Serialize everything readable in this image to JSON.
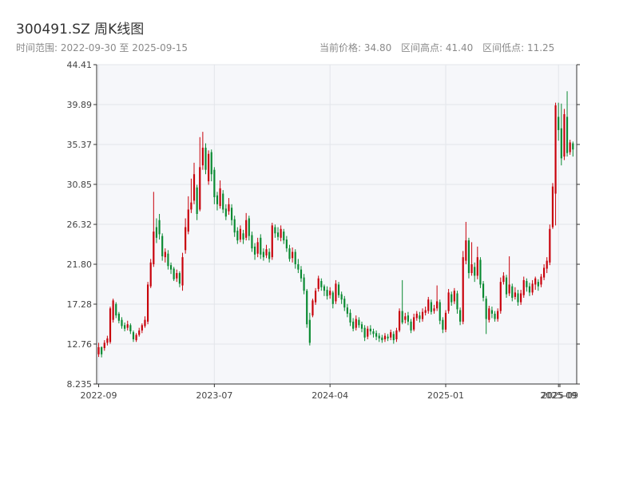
{
  "header": {
    "title": "300491.SZ 周K线图",
    "range_label": "时间范围: 2022-09-30 至 2025-09-15",
    "stats": {
      "price": "当前价格: 34.80",
      "high": "区间高点: 41.40",
      "low": "区间低点: 11.25"
    }
  },
  "colors": {
    "up": "#c8000a",
    "down": "#0a8a32",
    "plot_bg": "#f6f7fa",
    "grid": "#e3e5ea",
    "axis": "#333333"
  },
  "chart_data": {
    "type": "candlestick",
    "title": "300491.SZ 周K线图",
    "ylim": [
      8.235,
      44.41
    ],
    "y_ticks": [
      8.235,
      12.76,
      17.28,
      21.8,
      26.32,
      30.85,
      35.37,
      39.89,
      44.41
    ],
    "y_tick_labels": [
      "8.235",
      "12.76",
      "17.28",
      "21.80",
      "26.32",
      "30.85",
      "35.37",
      "39.89",
      "44.41"
    ],
    "x_tick_labels": [
      "2022-09",
      "2023-07",
      "2024-04",
      "2025-01",
      "2025-09"
    ],
    "x_tick_positions": [
      0,
      40,
      80,
      120,
      159
    ],
    "x_end_label": "2025-09",
    "x_end_position": 159.5,
    "candles": [
      [
        11.6,
        12.4,
        12.9,
        11.3
      ],
      [
        12.4,
        11.6,
        12.5,
        11.25
      ],
      [
        12.3,
        12.9,
        13.2,
        12.0
      ],
      [
        12.9,
        13.4,
        13.7,
        12.6
      ],
      [
        13.0,
        16.8,
        17.0,
        12.8
      ],
      [
        15.5,
        17.7,
        17.9,
        15.2
      ],
      [
        17.3,
        16.0,
        17.5,
        15.7
      ],
      [
        16.2,
        15.4,
        16.4,
        15.1
      ],
      [
        15.5,
        14.8,
        15.8,
        14.5
      ],
      [
        14.9,
        14.5,
        15.2,
        14.2
      ],
      [
        14.6,
        15.0,
        15.4,
        14.3
      ],
      [
        14.9,
        14.2,
        15.1,
        13.9
      ],
      [
        14.1,
        13.3,
        14.3,
        13.0
      ],
      [
        13.2,
        13.8,
        14.0,
        13.0
      ],
      [
        13.8,
        14.3,
        14.6,
        13.6
      ],
      [
        14.3,
        14.9,
        15.1,
        14.0
      ],
      [
        14.8,
        15.5,
        15.9,
        14.6
      ],
      [
        15.3,
        19.5,
        19.8,
        15.0
      ],
      [
        19.3,
        22.0,
        22.4,
        19.1
      ],
      [
        21.8,
        25.5,
        30.0,
        21.5
      ],
      [
        26.0,
        24.8,
        27.0,
        24.2
      ],
      [
        26.8,
        25.2,
        27.5,
        24.6
      ],
      [
        25.0,
        22.7,
        25.3,
        22.2
      ],
      [
        22.6,
        23.2,
        23.6,
        22.0
      ],
      [
        23.0,
        21.6,
        23.4,
        21.2
      ],
      [
        21.7,
        21.2,
        22.0,
        20.7
      ],
      [
        21.3,
        20.1,
        21.5,
        19.9
      ],
      [
        20.2,
        20.8,
        21.2,
        19.8
      ],
      [
        20.8,
        19.6,
        21.0,
        19.2
      ],
      [
        19.4,
        22.6,
        23.1,
        18.8
      ],
      [
        23.4,
        26.0,
        27.0,
        23.0
      ],
      [
        25.5,
        28.0,
        29.5,
        25.2
      ],
      [
        28.0,
        28.8,
        31.5,
        27.6
      ],
      [
        29.0,
        32.0,
        33.3,
        28.6
      ],
      [
        30.5,
        27.5,
        30.8,
        26.8
      ],
      [
        28.0,
        32.8,
        36.2,
        27.8
      ],
      [
        33.0,
        35.0,
        36.8,
        32.5
      ],
      [
        35.0,
        32.5,
        35.5,
        32.0
      ],
      [
        31.2,
        34.3,
        34.7,
        30.8
      ],
      [
        34.5,
        32.0,
        34.8,
        31.2
      ],
      [
        32.5,
        29.4,
        32.8,
        28.6
      ],
      [
        29.6,
        28.6,
        30.0,
        27.9
      ],
      [
        28.4,
        30.4,
        31.3,
        28.1
      ],
      [
        29.8,
        28.0,
        30.2,
        27.6
      ],
      [
        28.1,
        27.2,
        28.6,
        26.8
      ],
      [
        27.8,
        28.6,
        29.3,
        27.4
      ],
      [
        28.2,
        26.8,
        28.6,
        26.2
      ],
      [
        26.9,
        25.4,
        27.3,
        24.9
      ],
      [
        25.6,
        24.5,
        26.0,
        24.1
      ],
      [
        24.6,
        25.8,
        26.2,
        24.3
      ],
      [
        25.3,
        24.6,
        25.7,
        24.1
      ],
      [
        24.8,
        26.8,
        27.6,
        24.5
      ],
      [
        27.0,
        25.0,
        27.3,
        24.5
      ],
      [
        25.1,
        23.6,
        25.5,
        23.2
      ],
      [
        23.8,
        22.9,
        24.2,
        22.3
      ],
      [
        23.0,
        24.3,
        24.8,
        22.6
      ],
      [
        24.8,
        22.9,
        25.2,
        22.4
      ],
      [
        23.2,
        22.6,
        23.6,
        22.2
      ],
      [
        22.8,
        23.5,
        24.0,
        22.5
      ],
      [
        23.2,
        22.4,
        23.6,
        22.0
      ],
      [
        22.6,
        26.2,
        26.5,
        22.3
      ],
      [
        26.0,
        25.3,
        26.3,
        24.8
      ],
      [
        25.4,
        24.9,
        26.0,
        24.5
      ],
      [
        24.8,
        25.8,
        26.2,
        24.4
      ],
      [
        25.5,
        24.5,
        25.8,
        24.1
      ],
      [
        24.6,
        23.6,
        25.0,
        23.2
      ],
      [
        23.6,
        22.4,
        24.0,
        22.1
      ],
      [
        22.5,
        23.2,
        23.7,
        22.0
      ],
      [
        23.2,
        21.8,
        23.5,
        21.3
      ],
      [
        21.8,
        21.2,
        22.4,
        20.8
      ],
      [
        21.2,
        20.2,
        21.6,
        19.8
      ],
      [
        20.3,
        18.8,
        20.7,
        18.4
      ],
      [
        18.8,
        15.0,
        19.0,
        14.6
      ],
      [
        15.5,
        12.9,
        16.3,
        12.6
      ],
      [
        16.0,
        17.7,
        17.9,
        15.8
      ],
      [
        17.5,
        18.8,
        19.1,
        17.2
      ],
      [
        19.0,
        20.2,
        20.5,
        18.7
      ],
      [
        19.9,
        19.2,
        20.2,
        18.8
      ],
      [
        19.3,
        18.8,
        19.5,
        18.2
      ],
      [
        18.9,
        18.2,
        19.3,
        17.8
      ],
      [
        18.3,
        18.8,
        19.2,
        17.9
      ],
      [
        18.6,
        17.3,
        18.8,
        16.8
      ],
      [
        17.6,
        19.6,
        20.0,
        17.3
      ],
      [
        19.5,
        18.3,
        19.8,
        18.0
      ],
      [
        18.4,
        17.8,
        18.7,
        17.3
      ],
      [
        17.9,
        16.9,
        18.2,
        16.5
      ],
      [
        16.9,
        16.2,
        17.3,
        15.8
      ],
      [
        16.3,
        15.2,
        16.7,
        14.8
      ],
      [
        15.3,
        14.5,
        15.7,
        14.2
      ],
      [
        14.6,
        15.6,
        16.0,
        14.3
      ],
      [
        15.5,
        14.9,
        15.8,
        14.6
      ],
      [
        15.0,
        14.5,
        15.3,
        14.1
      ],
      [
        14.6,
        13.5,
        14.9,
        13.1
      ],
      [
        13.6,
        14.5,
        14.8,
        13.3
      ],
      [
        14.5,
        14.2,
        14.9,
        13.8
      ],
      [
        14.2,
        13.9,
        14.5,
        13.5
      ],
      [
        14.0,
        13.6,
        14.3,
        13.2
      ],
      [
        13.7,
        13.4,
        14.0,
        13.0
      ],
      [
        13.5,
        13.2,
        13.8,
        12.9
      ],
      [
        13.3,
        13.7,
        14.0,
        13.0
      ],
      [
        13.6,
        13.4,
        13.9,
        13.1
      ],
      [
        13.5,
        14.1,
        14.4,
        13.2
      ],
      [
        13.9,
        13.2,
        14.2,
        12.8
      ],
      [
        13.3,
        14.3,
        14.6,
        13.0
      ],
      [
        14.3,
        16.5,
        16.8,
        14.1
      ],
      [
        16.5,
        15.2,
        20.0,
        15.0
      ],
      [
        15.5,
        15.9,
        16.3,
        15.1
      ],
      [
        16.0,
        15.3,
        16.4,
        14.9
      ],
      [
        15.3,
        14.3,
        15.6,
        14.0
      ],
      [
        14.4,
        15.8,
        16.2,
        14.2
      ],
      [
        15.7,
        16.2,
        16.5,
        15.4
      ],
      [
        16.0,
        15.6,
        16.4,
        15.2
      ],
      [
        15.6,
        16.4,
        16.8,
        15.3
      ],
      [
        16.3,
        16.6,
        17.0,
        16.0
      ],
      [
        16.5,
        17.8,
        18.1,
        16.2
      ],
      [
        17.5,
        16.4,
        17.8,
        16.1
      ],
      [
        16.5,
        16.8,
        17.2,
        16.2
      ],
      [
        16.8,
        17.6,
        19.4,
        16.5
      ],
      [
        17.5,
        15.4,
        17.8,
        15.0
      ],
      [
        15.5,
        14.4,
        15.8,
        14.0
      ],
      [
        14.4,
        16.3,
        16.6,
        14.1
      ],
      [
        16.5,
        18.6,
        19.0,
        16.2
      ],
      [
        18.4,
        17.5,
        18.7,
        17.1
      ],
      [
        17.6,
        18.8,
        19.1,
        17.3
      ],
      [
        18.5,
        16.7,
        18.8,
        16.2
      ],
      [
        16.6,
        15.3,
        16.9,
        14.9
      ],
      [
        15.3,
        22.6,
        23.3,
        15.0
      ],
      [
        22.2,
        24.5,
        26.6,
        21.8
      ],
      [
        24.5,
        20.8,
        24.8,
        20.2
      ],
      [
        20.8,
        21.8,
        24.3,
        20.5
      ],
      [
        21.5,
        20.5,
        22.0,
        19.8
      ],
      [
        20.5,
        22.6,
        23.8,
        20.1
      ],
      [
        22.3,
        19.5,
        22.6,
        19.1
      ],
      [
        19.6,
        18.0,
        19.9,
        17.6
      ],
      [
        17.9,
        15.6,
        18.2,
        13.9
      ],
      [
        15.5,
        16.8,
        17.1,
        15.2
      ],
      [
        16.6,
        16.2,
        17.0,
        15.7
      ],
      [
        16.2,
        15.6,
        16.5,
        15.3
      ],
      [
        15.6,
        16.5,
        16.8,
        15.3
      ],
      [
        16.5,
        19.8,
        20.3,
        16.2
      ],
      [
        19.8,
        20.5,
        20.9,
        19.5
      ],
      [
        20.3,
        18.4,
        20.6,
        18.0
      ],
      [
        18.5,
        19.5,
        22.7,
        18.2
      ],
      [
        19.3,
        18.0,
        19.6,
        17.6
      ],
      [
        18.1,
        18.6,
        19.2,
        17.8
      ],
      [
        18.5,
        17.5,
        18.9,
        17.1
      ],
      [
        17.5,
        18.5,
        18.9,
        17.2
      ],
      [
        18.3,
        20.0,
        20.4,
        18.0
      ],
      [
        19.9,
        19.2,
        20.2,
        18.7
      ],
      [
        19.3,
        18.6,
        19.7,
        18.2
      ],
      [
        18.6,
        19.6,
        20.0,
        18.3
      ],
      [
        19.5,
        20.2,
        20.4,
        18.9
      ],
      [
        19.8,
        19.3,
        20.1,
        18.8
      ],
      [
        19.5,
        20.4,
        20.7,
        19.2
      ],
      [
        20.3,
        21.4,
        21.8,
        20.0
      ],
      [
        21.3,
        22.2,
        22.6,
        20.8
      ],
      [
        22.0,
        25.8,
        26.3,
        21.7
      ],
      [
        26.0,
        30.6,
        31.0,
        25.8
      ],
      [
        29.8,
        39.8,
        40.1,
        26.2
      ],
      [
        38.5,
        37.0,
        40.1,
        35.8
      ],
      [
        37.2,
        33.8,
        40.0,
        33.0
      ],
      [
        34.0,
        38.8,
        39.4,
        33.6
      ],
      [
        38.5,
        34.4,
        41.4,
        34.0
      ],
      [
        34.5,
        35.6,
        35.9,
        34.2
      ],
      [
        35.5,
        34.8,
        35.7,
        34.0
      ]
    ]
  }
}
